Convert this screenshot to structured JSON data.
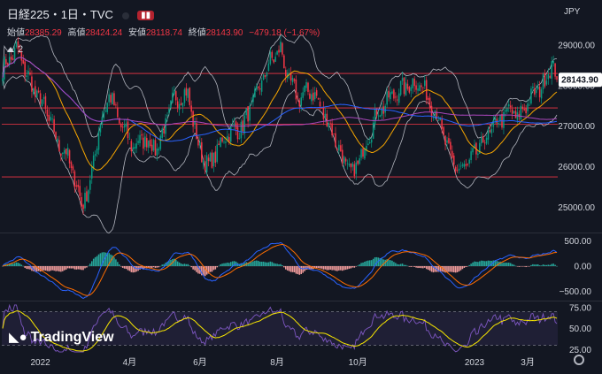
{
  "header": {
    "title": "日経225・1日・TVC",
    "open_label": "始値",
    "open": "28385.29",
    "high_label": "高値",
    "high": "28424.24",
    "low_label": "安値",
    "low": "28118.74",
    "close_label": "終値",
    "close": "28143.90",
    "change": "−479.18 (−1.67%)",
    "indicator_count": "2",
    "currency": "JPY",
    "price_tag": "28143.90"
  },
  "logo": {
    "text": "TradingView",
    "icon": "tradingview-logo-icon"
  },
  "colors": {
    "background": "#131722",
    "bull": "#089981",
    "bear": "#f23645",
    "ma_short": "#f7a600",
    "ma_mid": "#2962ff",
    "ma_long": "#ab47bc",
    "bollinger": "#b2b5be",
    "hline": "#f23645",
    "macd": "#2962ff",
    "signal": "#ff6d00",
    "rsi": "#7e57c2",
    "rsi_ma": "#f7e600"
  },
  "chart_data": [
    {
      "type": "candlestick",
      "title": "日経225・1日・TVC",
      "x_tick_labels": [
        "2022",
        "4月",
        "6月",
        "8月",
        "10月",
        "2023",
        "3月"
      ],
      "y_tick_labels": [
        "29000.00",
        "28000.00",
        "27000.00",
        "26000.00",
        "25000.00"
      ],
      "ylim": [
        24400,
        29500
      ],
      "horizontal_lines": [
        28300,
        27450,
        27050,
        25750
      ],
      "last_price": 28143.9,
      "close_path": [
        [
          0,
          28400
        ],
        [
          8,
          28900
        ],
        [
          18,
          27900
        ],
        [
          24,
          27500
        ],
        [
          32,
          26600
        ],
        [
          38,
          26250
        ],
        [
          46,
          25100
        ],
        [
          50,
          25400
        ],
        [
          56,
          26900
        ],
        [
          62,
          27800
        ],
        [
          68,
          27100
        ],
        [
          76,
          26500
        ],
        [
          82,
          26700
        ],
        [
          90,
          26450
        ],
        [
          100,
          27700
        ],
        [
          108,
          27800
        ],
        [
          114,
          26500
        ],
        [
          120,
          26000
        ],
        [
          130,
          26800
        ],
        [
          140,
          27000
        ],
        [
          150,
          28000
        ],
        [
          156,
          28600
        ],
        [
          162,
          28900
        ],
        [
          166,
          28200
        ],
        [
          172,
          27700
        ],
        [
          180,
          27900
        ],
        [
          186,
          27400
        ],
        [
          192,
          26900
        ],
        [
          198,
          26200
        ],
        [
          204,
          25800
        ],
        [
          210,
          26400
        ],
        [
          218,
          27300
        ],
        [
          228,
          27800
        ],
        [
          236,
          28000
        ],
        [
          242,
          28100
        ],
        [
          248,
          27700
        ],
        [
          254,
          27200
        ],
        [
          260,
          26300
        ],
        [
          266,
          25900
        ],
        [
          272,
          26100
        ],
        [
          280,
          26600
        ],
        [
          288,
          27100
        ],
        [
          296,
          27400
        ],
        [
          300,
          27200
        ],
        [
          306,
          27600
        ],
        [
          312,
          27900
        ],
        [
          316,
          28100
        ],
        [
          320,
          28600
        ],
        [
          323,
          28144
        ]
      ]
    },
    {
      "type": "bar",
      "title": "MACD",
      "y_tick_labels": [
        "500.00",
        "0.00",
        "−500.00"
      ],
      "ylim": [
        -650,
        650
      ]
    },
    {
      "type": "line",
      "title": "RSI",
      "y_tick_labels": [
        "75.00",
        "50.00",
        "25.00"
      ],
      "ylim": [
        20,
        80
      ]
    }
  ]
}
